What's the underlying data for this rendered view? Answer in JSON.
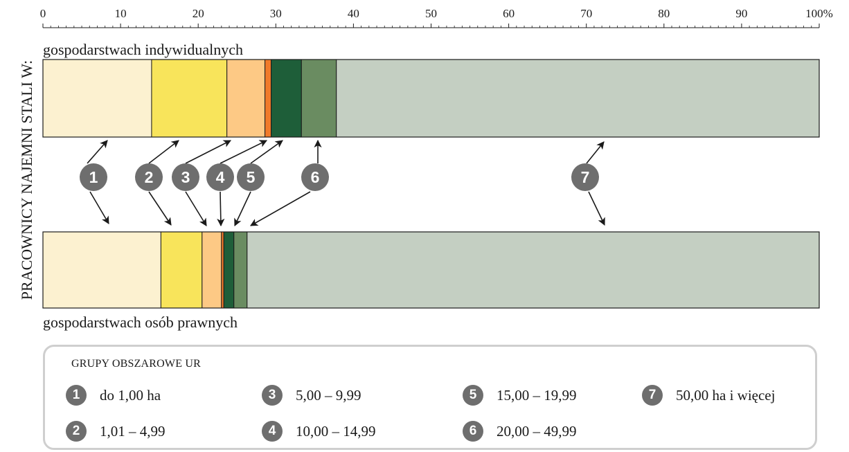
{
  "chart_data": {
    "type": "bar",
    "orientation": "horizontal",
    "stacked": true,
    "percent_scale": true,
    "side_label": "PRACOWNICY NAJEMNI STALI W:",
    "x_ticks": [
      "0",
      "10",
      "20",
      "30",
      "40",
      "50",
      "60",
      "70",
      "80",
      "90",
      "100%"
    ],
    "xlim": [
      0,
      100
    ],
    "categories": [
      "gospodarstwach indywidualnych",
      "gospodarstwach osób prawnych"
    ],
    "series": [
      {
        "name": "do 1,00 ha",
        "color": "#fcf1d0",
        "values": [
          14.0,
          15.2
        ]
      },
      {
        "name": "1,01 – 4,99",
        "color": "#f8e45b",
        "values": [
          9.7,
          5.3
        ]
      },
      {
        "name": "5,00 – 9,99",
        "color": "#fdc985",
        "values": [
          4.9,
          2.5
        ]
      },
      {
        "name": "10,00 – 14,99",
        "color": "#f07a2a",
        "values": [
          0.8,
          0.3
        ]
      },
      {
        "name": "15,00 – 19,99",
        "color": "#1e5e39",
        "values": [
          3.9,
          1.3
        ]
      },
      {
        "name": "20,00 – 49,99",
        "color": "#6a8c61",
        "values": [
          4.5,
          1.7
        ]
      },
      {
        "name": "50,00 ha i więcej",
        "color": "#c4cfc2",
        "values": [
          62.2,
          73.7
        ]
      }
    ],
    "segment_markers": [
      "1",
      "2",
      "3",
      "4",
      "5",
      "6",
      "7"
    ],
    "legend": {
      "title": "GRUPY OBSZAROWE UR",
      "position": "bottom"
    }
  }
}
